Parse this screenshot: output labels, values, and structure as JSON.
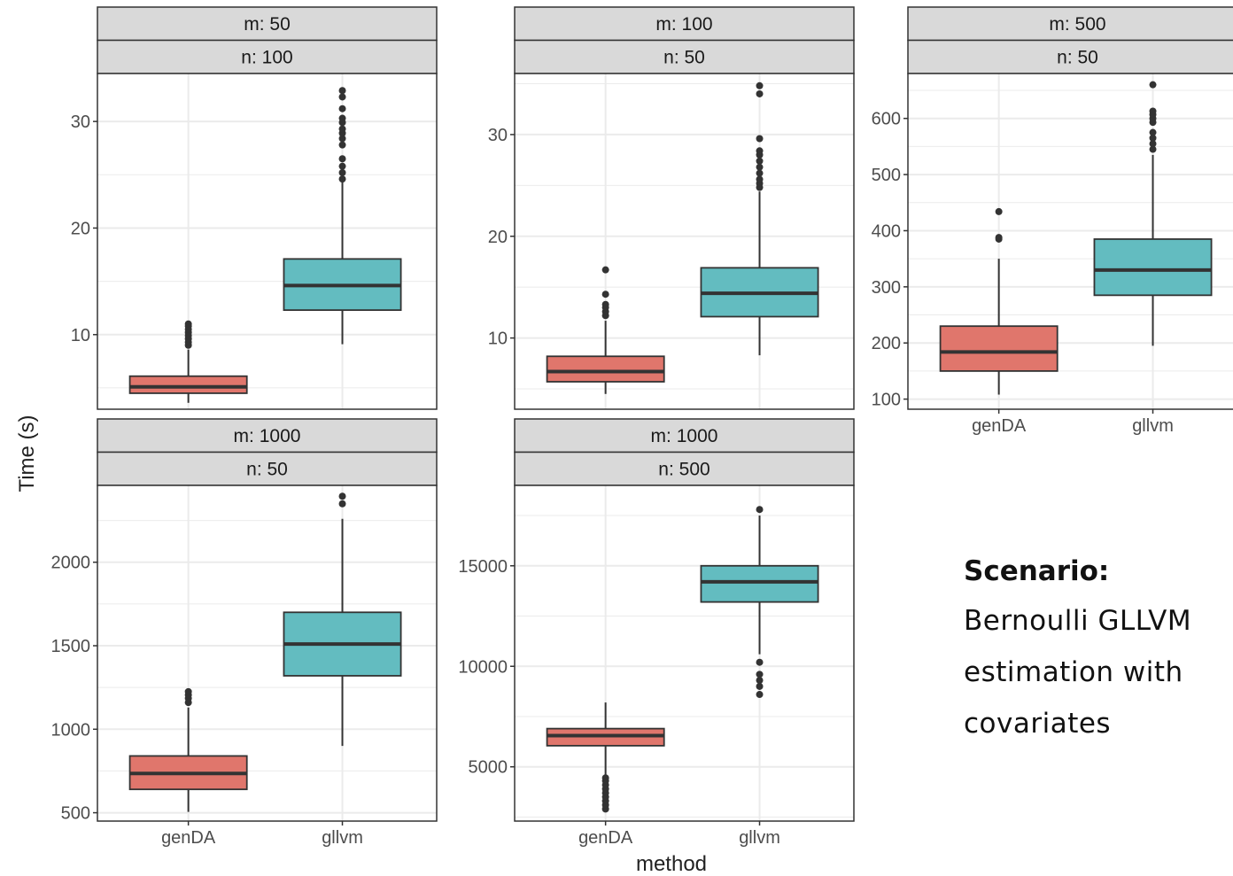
{
  "y_axis_label": "Time (s)",
  "x_axis_label": "method",
  "scenario": {
    "title": "Scenario:",
    "lines": [
      "Bernoulli GLLVM",
      "estimation with",
      "covariates"
    ]
  },
  "colors": {
    "genDA": "#E0766C",
    "gllvm": "#63BCC0",
    "strip": "#d9d9d9",
    "grid": "#ebebeb"
  },
  "chart_data": [
    {
      "type": "box",
      "strip_labels": [
        "m: 50",
        "n: 100"
      ],
      "categories": [
        "genDA",
        "gllvm"
      ],
      "ylim": [
        3.0,
        34.5
      ],
      "y_ticks": [
        10,
        20,
        30
      ],
      "boxes": [
        {
          "method": "genDA",
          "min": 3.6,
          "q1": 4.5,
          "median": 5.1,
          "q3": 6.1,
          "max": 8.6,
          "outliers": [
            9.0,
            9.3,
            9.6,
            9.9,
            10.2,
            10.5,
            10.8,
            11.0
          ]
        },
        {
          "method": "gllvm",
          "min": 9.1,
          "q1": 12.3,
          "median": 14.6,
          "q3": 17.1,
          "max": 24.3,
          "outliers": [
            24.6,
            25.2,
            25.8,
            26.5,
            27.8,
            28.4,
            28.9,
            29.3,
            29.9,
            30.3,
            31.2,
            32.3,
            32.9
          ]
        }
      ]
    },
    {
      "type": "box",
      "strip_labels": [
        "m: 100",
        "n: 50"
      ],
      "categories": [
        "genDA",
        "gllvm"
      ],
      "ylim": [
        3.0,
        36.0
      ],
      "y_ticks": [
        10,
        20,
        30
      ],
      "boxes": [
        {
          "method": "genDA",
          "min": 4.5,
          "q1": 5.7,
          "median": 6.7,
          "q3": 8.2,
          "max": 11.7,
          "outliers": [
            12.2,
            12.6,
            13.0,
            13.3,
            14.3,
            16.7
          ]
        },
        {
          "method": "gllvm",
          "min": 8.3,
          "q1": 12.1,
          "median": 14.4,
          "q3": 16.9,
          "max": 24.4,
          "outliers": [
            24.8,
            25.2,
            25.6,
            26.2,
            26.8,
            27.4,
            28.0,
            28.4,
            29.6,
            34.0,
            34.8
          ]
        }
      ]
    },
    {
      "type": "box",
      "strip_labels": [
        "m: 500",
        "n: 50"
      ],
      "categories": [
        "genDA",
        "gllvm"
      ],
      "ylim": [
        82,
        680
      ],
      "y_ticks": [
        100,
        200,
        300,
        400,
        500,
        600
      ],
      "boxes": [
        {
          "method": "genDA",
          "min": 108,
          "q1": 150,
          "median": 184,
          "q3": 230,
          "max": 350,
          "outliers": [
            385,
            388,
            434
          ]
        },
        {
          "method": "gllvm",
          "min": 195,
          "q1": 285,
          "median": 330,
          "q3": 385,
          "max": 535,
          "outliers": [
            545,
            555,
            565,
            575,
            593,
            600,
            607,
            613,
            660
          ]
        }
      ]
    },
    {
      "type": "box",
      "strip_labels": [
        "m: 1000",
        "n: 50"
      ],
      "categories": [
        "genDA",
        "gllvm"
      ],
      "ylim": [
        450,
        2460
      ],
      "y_ticks": [
        500,
        1000,
        1500,
        2000
      ],
      "boxes": [
        {
          "method": "genDA",
          "min": 505,
          "q1": 640,
          "median": 735,
          "q3": 840,
          "max": 1130,
          "outliers": [
            1160,
            1185,
            1205,
            1225
          ]
        },
        {
          "method": "gllvm",
          "min": 900,
          "q1": 1320,
          "median": 1510,
          "q3": 1700,
          "max": 2260,
          "outliers": [
            2350,
            2395
          ]
        }
      ]
    },
    {
      "type": "box",
      "strip_labels": [
        "m: 1000",
        "n: 500"
      ],
      "categories": [
        "genDA",
        "gllvm"
      ],
      "ylim": [
        2300,
        19000
      ],
      "y_ticks": [
        5000,
        10000,
        15000
      ],
      "boxes": [
        {
          "method": "genDA",
          "min": 4600,
          "q1": 6050,
          "median": 6550,
          "q3": 6900,
          "max": 8200,
          "outliers": [
            2900,
            3100,
            3300,
            3500,
            3700,
            3900,
            4100,
            4300,
            4450
          ]
        },
        {
          "method": "gllvm",
          "min": 10600,
          "q1": 13200,
          "median": 14200,
          "q3": 15000,
          "max": 17500,
          "outliers": [
            8600,
            9000,
            9300,
            9600,
            10200,
            17800
          ]
        }
      ]
    }
  ]
}
